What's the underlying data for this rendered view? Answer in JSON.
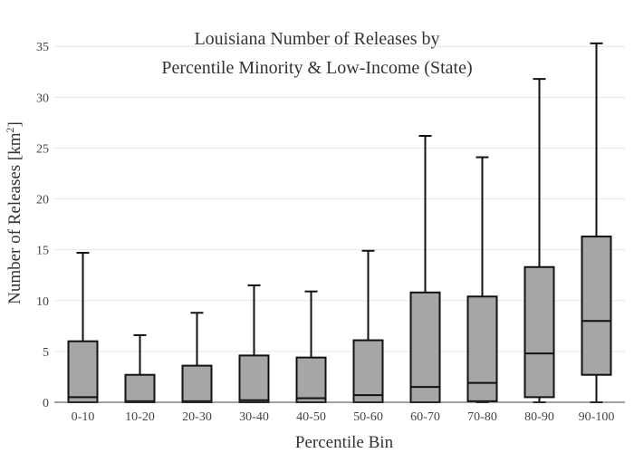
{
  "chart_data": {
    "type": "box",
    "title_lines": [
      "Louisiana Number of Releases by",
      "Percentile Minority & Low-Income (State)"
    ],
    "xlabel": "Percentile Bin",
    "ylabel_main": "Number of Releases  [km",
    "ylabel_sup": "2",
    "ylabel_end": "]",
    "ylim": [
      0,
      36
    ],
    "yticks": [
      0,
      5,
      10,
      15,
      20,
      25,
      30,
      35
    ],
    "grid": true,
    "categories": [
      "0-10",
      "10-20",
      "20-30",
      "30-40",
      "40-50",
      "50-60",
      "60-70",
      "70-80",
      "80-90",
      "90-100"
    ],
    "boxes": [
      {
        "min": 0,
        "q1": 0,
        "median": 0.5,
        "q3": 6.0,
        "max": 14.7
      },
      {
        "min": 0,
        "q1": 0,
        "median": 0.1,
        "q3": 2.7,
        "max": 6.6
      },
      {
        "min": 0,
        "q1": 0,
        "median": 0.1,
        "q3": 3.6,
        "max": 8.8
      },
      {
        "min": 0,
        "q1": 0,
        "median": 0.2,
        "q3": 4.6,
        "max": 11.5
      },
      {
        "min": 0,
        "q1": 0,
        "median": 0.4,
        "q3": 4.4,
        "max": 10.9
      },
      {
        "min": 0,
        "q1": 0,
        "median": 0.7,
        "q3": 6.1,
        "max": 14.9
      },
      {
        "min": 0,
        "q1": 0,
        "median": 1.5,
        "q3": 10.8,
        "max": 26.2
      },
      {
        "min": 0,
        "q1": 0.1,
        "median": 1.9,
        "q3": 10.4,
        "max": 24.1
      },
      {
        "min": 0,
        "q1": 0.5,
        "median": 4.8,
        "q3": 13.3,
        "max": 31.8
      },
      {
        "min": 0,
        "q1": 2.7,
        "median": 8.0,
        "q3": 16.3,
        "max": 35.3
      }
    ]
  }
}
